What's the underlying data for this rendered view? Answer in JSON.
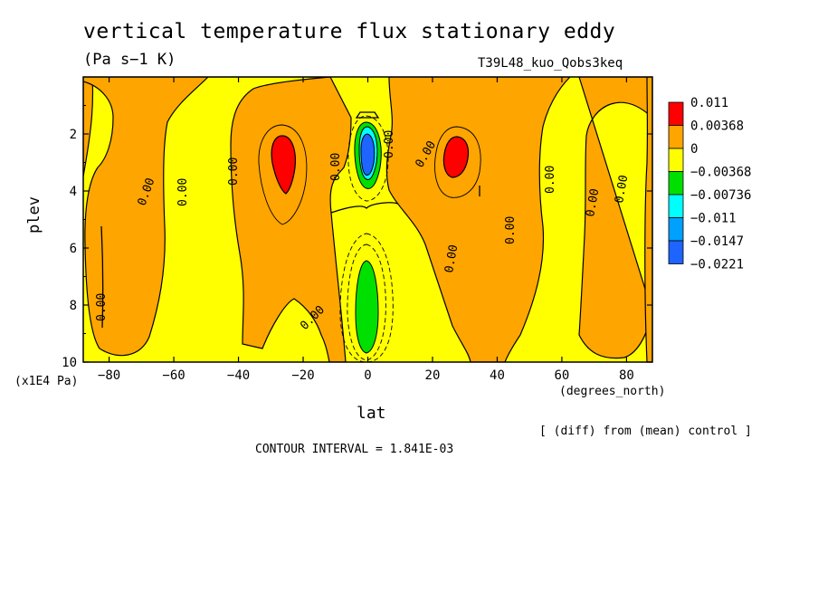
{
  "chart_data": {
    "type": "heatmap",
    "subtype": "filled-contour",
    "title": "vertical temperature flux stationary eddy",
    "units": "(Pa s−1 K)",
    "model": "T39L48_kuo_Qobs3keq",
    "xlabel": "lat",
    "x_units": "(degrees_north)",
    "ylabel": "plev",
    "y_units": "(x1E4 Pa)",
    "xlim": [
      -88,
      88
    ],
    "ylim": [
      10,
      0
    ],
    "x_ticks": [
      -80,
      -60,
      -40,
      -20,
      0,
      20,
      40,
      60,
      80
    ],
    "x_tick_labels": [
      "−80",
      "−60",
      "−40",
      "−20",
      "0",
      "20",
      "40",
      "60",
      "80"
    ],
    "y_ticks": [
      2,
      4,
      6,
      8,
      10
    ],
    "y_tick_labels": [
      "2",
      "4",
      "6",
      "8",
      "10"
    ],
    "contour_interval_text": "CONTOUR INTERVAL = 1.841E-03",
    "diff_note": "[ (diff) from (mean) control ]",
    "contour_label": "0.00",
    "legend": {
      "placement": "right",
      "levels": [
        {
          "label": "0.011",
          "color": "#ff0000"
        },
        {
          "label": "0.00368",
          "color": "#ffa500"
        },
        {
          "label": "0",
          "color": "#ffff00"
        },
        {
          "label": "−0.00368",
          "color": "#00e000"
        },
        {
          "label": "−0.00736",
          "color": "#00ffff"
        },
        {
          "label": "−0.011",
          "color": "#00a0ff"
        },
        {
          "label": "−0.0147",
          "color": "#1e64ff"
        },
        {
          "label": "−0.0221",
          "color": ""
        }
      ]
    },
    "regions": [
      {
        "name": "warm-cell-south",
        "lat": [
          -29,
          -21
        ],
        "plev": [
          2.1,
          3.8
        ],
        "level": "0.011"
      },
      {
        "name": "warm-cell-north",
        "lat": [
          22,
          31
        ],
        "plev": [
          2.1,
          3.3
        ],
        "level": "0.011"
      },
      {
        "name": "cold-core-upper",
        "lat": [
          -2,
          3
        ],
        "plev": [
          1.8,
          3.4
        ],
        "level": "−0.0147"
      },
      {
        "name": "cold-core-lower",
        "lat": [
          -4,
          4
        ],
        "plev": [
          6.6,
          9.8
        ],
        "level": "−0.00368"
      }
    ]
  }
}
